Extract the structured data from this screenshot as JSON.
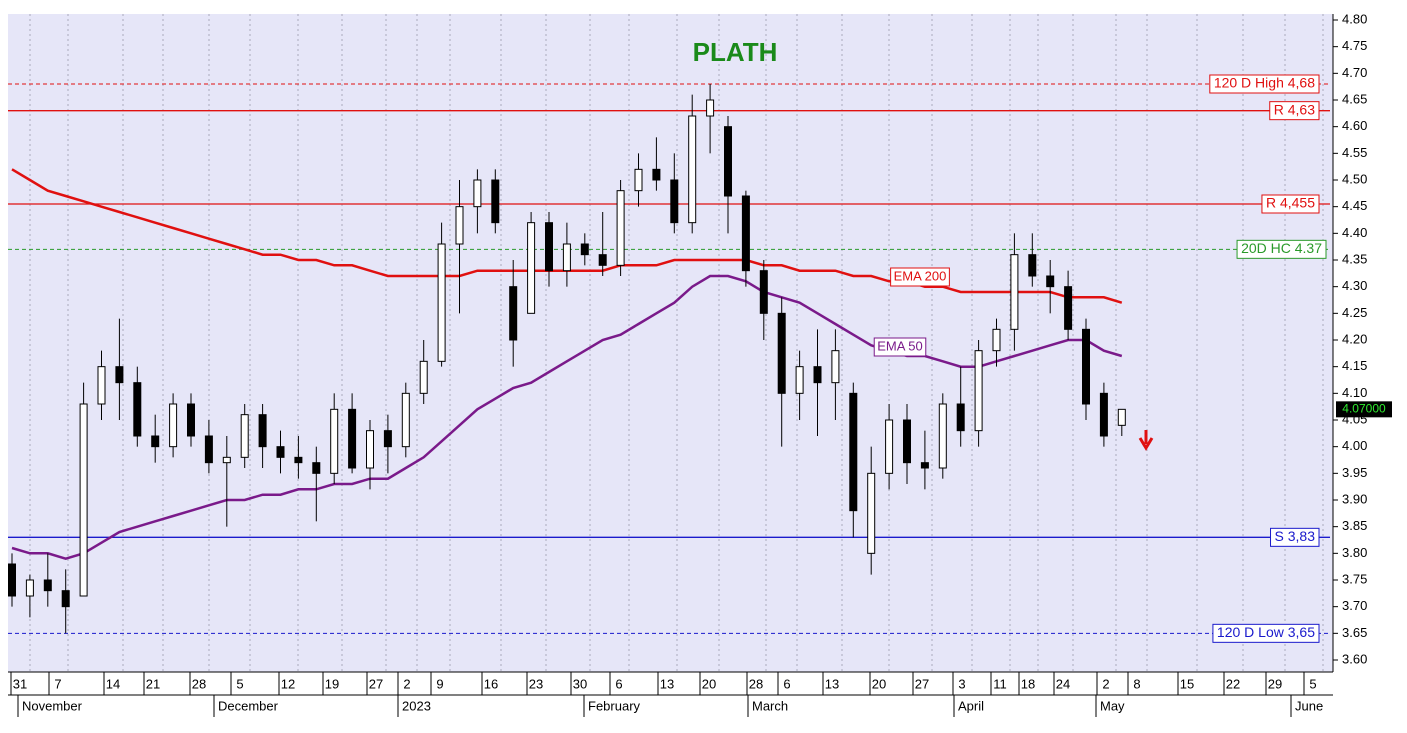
{
  "chart_data": {
    "type": "candlestick",
    "title": "PLATH",
    "title_color": "#1a8a1a",
    "background": "#e6e6f8",
    "ylim": [
      3.575,
      4.8
    ],
    "yticks": [
      {
        "value": 3.6,
        "label": "3.60"
      },
      {
        "value": 3.65,
        "label": "3.65"
      },
      {
        "value": 3.7,
        "label": "3.70"
      },
      {
        "value": 3.75,
        "label": "3.75"
      },
      {
        "value": 3.8,
        "label": "3.80"
      },
      {
        "value": 3.85,
        "label": "3.85"
      },
      {
        "value": 3.9,
        "label": "3.90"
      },
      {
        "value": 3.95,
        "label": "3.95"
      },
      {
        "value": 4.0,
        "label": "4.00"
      },
      {
        "value": 4.05,
        "label": "4.05"
      },
      {
        "value": 4.1,
        "label": "4.10"
      },
      {
        "value": 4.15,
        "label": "4.15"
      },
      {
        "value": 4.2,
        "label": "4.20"
      },
      {
        "value": 4.25,
        "label": "4.25"
      },
      {
        "value": 4.3,
        "label": "4.30"
      },
      {
        "value": 4.35,
        "label": "4.35"
      },
      {
        "value": 4.4,
        "label": "4.40"
      },
      {
        "value": 4.45,
        "label": "4.45"
      },
      {
        "value": 4.5,
        "label": "4.50"
      },
      {
        "value": 4.55,
        "label": "4.55"
      },
      {
        "value": 4.6,
        "label": "4.60"
      },
      {
        "value": 4.65,
        "label": "4.65"
      },
      {
        "value": 4.7,
        "label": "4.70"
      },
      {
        "value": 4.75,
        "label": "4.75"
      },
      {
        "value": 4.8,
        "label": "4.80"
      }
    ],
    "x_day_labels": [
      "31",
      "7",
      "14",
      "21",
      "28",
      "5",
      "12",
      "19",
      "27",
      "2",
      "9",
      "16",
      "23",
      "30",
      "6",
      "13",
      "20",
      "28",
      "6",
      "13",
      "20",
      "27",
      "3",
      "11",
      "18",
      "24",
      "2",
      "8",
      "15",
      "22",
      "29",
      "5"
    ],
    "x_month_labels": [
      "November",
      "December",
      "2023",
      "February",
      "March",
      "April",
      "May",
      "June"
    ],
    "candles": [
      [
        3.78,
        3.8,
        3.7,
        3.72
      ],
      [
        3.72,
        3.76,
        3.68,
        3.75
      ],
      [
        3.75,
        3.8,
        3.7,
        3.73
      ],
      [
        3.73,
        3.77,
        3.65,
        3.7
      ],
      [
        3.72,
        4.12,
        3.72,
        4.08
      ],
      [
        4.08,
        4.18,
        4.05,
        4.15
      ],
      [
        4.15,
        4.24,
        4.05,
        4.12
      ],
      [
        4.12,
        4.15,
        4.0,
        4.02
      ],
      [
        4.02,
        4.06,
        3.97,
        4.0
      ],
      [
        4.0,
        4.1,
        3.98,
        4.08
      ],
      [
        4.08,
        4.1,
        4.0,
        4.02
      ],
      [
        4.02,
        4.05,
        3.95,
        3.97
      ],
      [
        3.97,
        4.02,
        3.85,
        3.98
      ],
      [
        3.98,
        4.08,
        3.96,
        4.06
      ],
      [
        4.06,
        4.08,
        3.96,
        4.0
      ],
      [
        4.0,
        4.03,
        3.95,
        3.98
      ],
      [
        3.98,
        4.02,
        3.94,
        3.97
      ],
      [
        3.97,
        4.0,
        3.86,
        3.95
      ],
      [
        3.95,
        4.1,
        3.93,
        4.07
      ],
      [
        4.07,
        4.1,
        3.95,
        3.96
      ],
      [
        3.96,
        4.05,
        3.92,
        4.03
      ],
      [
        4.03,
        4.06,
        3.95,
        4.0
      ],
      [
        4.0,
        4.12,
        3.98,
        4.1
      ],
      [
        4.1,
        4.2,
        4.08,
        4.16
      ],
      [
        4.16,
        4.42,
        4.15,
        4.38
      ],
      [
        4.38,
        4.5,
        4.25,
        4.45
      ],
      [
        4.45,
        4.52,
        4.4,
        4.5
      ],
      [
        4.5,
        4.52,
        4.4,
        4.42
      ],
      [
        4.3,
        4.35,
        4.15,
        4.2
      ],
      [
        4.25,
        4.44,
        4.25,
        4.42
      ],
      [
        4.42,
        4.44,
        4.3,
        4.33
      ],
      [
        4.33,
        4.42,
        4.3,
        4.38
      ],
      [
        4.38,
        4.4,
        4.34,
        4.36
      ],
      [
        4.36,
        4.44,
        4.32,
        4.34
      ],
      [
        4.34,
        4.5,
        4.32,
        4.48
      ],
      [
        4.48,
        4.55,
        4.45,
        4.52
      ],
      [
        4.52,
        4.58,
        4.48,
        4.5
      ],
      [
        4.5,
        4.55,
        4.4,
        4.42
      ],
      [
        4.42,
        4.66,
        4.4,
        4.62
      ],
      [
        4.62,
        4.68,
        4.55,
        4.65
      ],
      [
        4.6,
        4.62,
        4.4,
        4.47
      ],
      [
        4.47,
        4.48,
        4.3,
        4.33
      ],
      [
        4.33,
        4.35,
        4.2,
        4.25
      ],
      [
        4.25,
        4.28,
        4.0,
        4.1
      ],
      [
        4.1,
        4.18,
        4.05,
        4.15
      ],
      [
        4.15,
        4.22,
        4.02,
        4.12
      ],
      [
        4.12,
        4.22,
        4.05,
        4.18
      ],
      [
        4.1,
        4.12,
        3.83,
        3.88
      ],
      [
        3.8,
        4.0,
        3.76,
        3.95
      ],
      [
        3.95,
        4.08,
        3.92,
        4.05
      ],
      [
        4.05,
        4.08,
        3.93,
        3.97
      ],
      [
        3.97,
        4.03,
        3.92,
        3.96
      ],
      [
        3.96,
        4.1,
        3.94,
        4.08
      ],
      [
        4.08,
        4.15,
        4.0,
        4.03
      ],
      [
        4.03,
        4.2,
        4.0,
        4.18
      ],
      [
        4.18,
        4.24,
        4.15,
        4.22
      ],
      [
        4.22,
        4.4,
        4.18,
        4.36
      ],
      [
        4.36,
        4.4,
        4.3,
        4.32
      ],
      [
        4.32,
        4.35,
        4.25,
        4.3
      ],
      [
        4.3,
        4.33,
        4.2,
        4.22
      ],
      [
        4.22,
        4.24,
        4.05,
        4.08
      ],
      [
        4.1,
        4.12,
        4.0,
        4.02
      ],
      [
        4.04,
        4.07,
        4.02,
        4.07
      ]
    ],
    "series": [
      {
        "name": "EMA 200",
        "color": "#e01010",
        "values": [
          4.52,
          4.5,
          4.48,
          4.47,
          4.46,
          4.45,
          4.44,
          4.43,
          4.42,
          4.41,
          4.4,
          4.39,
          4.38,
          4.37,
          4.36,
          4.36,
          4.35,
          4.35,
          4.34,
          4.34,
          4.33,
          4.32,
          4.32,
          4.32,
          4.32,
          4.32,
          4.33,
          4.33,
          4.33,
          4.33,
          4.33,
          4.33,
          4.33,
          4.33,
          4.34,
          4.34,
          4.34,
          4.35,
          4.35,
          4.35,
          4.35,
          4.35,
          4.34,
          4.34,
          4.33,
          4.33,
          4.33,
          4.32,
          4.32,
          4.31,
          4.31,
          4.3,
          4.3,
          4.29,
          4.29,
          4.29,
          4.29,
          4.29,
          4.29,
          4.28,
          4.28,
          4.28,
          4.27
        ]
      },
      {
        "name": "EMA 50",
        "color": "#7a1a8a",
        "values": [
          3.81,
          3.8,
          3.8,
          3.79,
          3.8,
          3.82,
          3.84,
          3.85,
          3.86,
          3.87,
          3.88,
          3.89,
          3.9,
          3.9,
          3.91,
          3.91,
          3.92,
          3.92,
          3.93,
          3.93,
          3.94,
          3.94,
          3.96,
          3.98,
          4.01,
          4.04,
          4.07,
          4.09,
          4.11,
          4.12,
          4.14,
          4.16,
          4.18,
          4.2,
          4.21,
          4.23,
          4.25,
          4.27,
          4.3,
          4.32,
          4.32,
          4.31,
          4.29,
          4.28,
          4.27,
          4.25,
          4.23,
          4.21,
          4.19,
          4.18,
          4.17,
          4.17,
          4.16,
          4.15,
          4.15,
          4.16,
          4.17,
          4.18,
          4.19,
          4.2,
          4.2,
          4.18,
          4.17
        ]
      }
    ],
    "levels": [
      {
        "value": 4.68,
        "label": "120 D High 4,68",
        "color": "#e01010",
        "style": "dashed"
      },
      {
        "value": 4.63,
        "label": "R 4,63",
        "color": "#e01010",
        "style": "solid"
      },
      {
        "value": 4.455,
        "label": "R 4,455",
        "color": "#e01010",
        "style": "solid"
      },
      {
        "value": 4.37,
        "label": "20D HC 4.37",
        "color": "#2a9a2a",
        "style": "dashed"
      },
      {
        "value": 3.83,
        "label": "S 3,83",
        "color": "#1a1acc",
        "style": "solid"
      },
      {
        "value": 3.65,
        "label": "120 D Low 3,65",
        "color": "#1a1acc",
        "style": "dashed"
      }
    ],
    "last_price": {
      "value": 4.07,
      "label": "4.07000"
    }
  }
}
